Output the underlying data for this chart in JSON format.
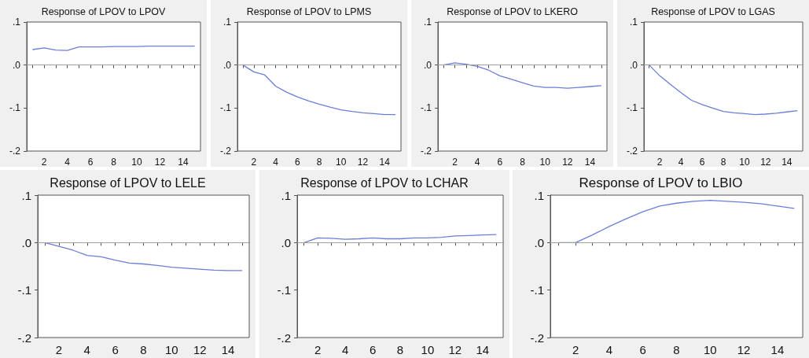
{
  "chart_data": [
    {
      "type": "line",
      "title": "Response of LPOV to LPOV",
      "x": [
        1,
        2,
        3,
        4,
        5,
        6,
        7,
        8,
        9,
        10,
        11,
        12,
        13,
        14,
        15
      ],
      "color": "#6a7fd6",
      "values": [
        0.036,
        0.04,
        0.035,
        0.034,
        0.042,
        0.042,
        0.042,
        0.043,
        0.043,
        0.043,
        0.044,
        0.044,
        0.044,
        0.044,
        0.044
      ],
      "xlim": [
        0.5,
        15.5
      ],
      "xticks": [
        {
          "value": 1,
          "label": null
        },
        2,
        {
          "value": 3,
          "label": null
        },
        4,
        {
          "value": 5,
          "label": null
        },
        6,
        {
          "value": 7,
          "label": null
        },
        8,
        {
          "value": 9,
          "label": null
        },
        10,
        {
          "value": 11,
          "label": null
        },
        12,
        {
          "value": 13,
          "label": null
        },
        14,
        {
          "value": 15,
          "label": null
        }
      ],
      "ylim": [
        -0.2,
        0.1
      ],
      "yticks": [
        {
          "value": -0.2,
          "label": "-.2"
        },
        {
          "value": -0.1,
          "label": "-.1"
        },
        {
          "value": 0,
          "label": ".0"
        },
        {
          "value": 0.1,
          "label": ".1"
        }
      ],
      "ref_lines": [
        {
          "axis": "y",
          "value": 0,
          "color": "#a0a0a0"
        }
      ]
    },
    {
      "type": "line",
      "title": "Response of LPOV to LPMS",
      "x": [
        1,
        2,
        3,
        4,
        5,
        6,
        7,
        8,
        9,
        10,
        11,
        12,
        13,
        14,
        15
      ],
      "color": "#6a7fd6",
      "values": [
        0,
        -0.016,
        -0.023,
        -0.049,
        -0.063,
        -0.074,
        -0.083,
        -0.091,
        -0.098,
        -0.104,
        -0.108,
        -0.111,
        -0.113,
        -0.115,
        -0.115
      ],
      "xlim": [
        0.5,
        15.5
      ],
      "xticks": [
        {
          "value": 1,
          "label": null
        },
        2,
        {
          "value": 3,
          "label": null
        },
        4,
        {
          "value": 5,
          "label": null
        },
        6,
        {
          "value": 7,
          "label": null
        },
        8,
        {
          "value": 9,
          "label": null
        },
        10,
        {
          "value": 11,
          "label": null
        },
        12,
        {
          "value": 13,
          "label": null
        },
        14,
        {
          "value": 15,
          "label": null
        }
      ],
      "ylim": [
        -0.2,
        0.1
      ],
      "yticks": [
        {
          "value": -0.2,
          "label": "-.2"
        },
        {
          "value": -0.1,
          "label": "-.1"
        },
        {
          "value": 0,
          "label": ".0"
        },
        {
          "value": 0.1,
          "label": ".1"
        }
      ],
      "ref_lines": [
        {
          "axis": "y",
          "value": 0,
          "color": "#a0a0a0"
        }
      ]
    },
    {
      "type": "line",
      "title": "Response of LPOV to LKERO",
      "x": [
        1,
        2,
        3,
        4,
        5,
        6,
        7,
        8,
        9,
        10,
        11,
        12,
        13,
        14,
        15
      ],
      "color": "#6a7fd6",
      "values": [
        0,
        0.005,
        0.002,
        -0.003,
        -0.012,
        -0.025,
        -0.033,
        -0.041,
        -0.049,
        -0.052,
        -0.052,
        -0.054,
        -0.052,
        -0.05,
        -0.048
      ],
      "xlim": [
        0.5,
        15.5
      ],
      "xticks": [
        {
          "value": 1,
          "label": null
        },
        2,
        {
          "value": 3,
          "label": null
        },
        4,
        {
          "value": 5,
          "label": null
        },
        6,
        {
          "value": 7,
          "label": null
        },
        8,
        {
          "value": 9,
          "label": null
        },
        10,
        {
          "value": 11,
          "label": null
        },
        12,
        {
          "value": 13,
          "label": null
        },
        14,
        {
          "value": 15,
          "label": null
        }
      ],
      "ylim": [
        -0.2,
        0.1
      ],
      "yticks": [
        {
          "value": -0.2,
          "label": "-.2"
        },
        {
          "value": -0.1,
          "label": "-.1"
        },
        {
          "value": 0,
          "label": ".0"
        },
        {
          "value": 0.1,
          "label": ".1"
        }
      ],
      "ref_lines": [
        {
          "axis": "y",
          "value": 0,
          "color": "#a0a0a0"
        }
      ]
    },
    {
      "type": "line",
      "title": "Response of LPOV to LGAS",
      "x": [
        1,
        2,
        3,
        4,
        5,
        6,
        7,
        8,
        9,
        10,
        11,
        12,
        13,
        14,
        15
      ],
      "color": "#6a7fd6",
      "values": [
        0,
        -0.025,
        -0.045,
        -0.064,
        -0.082,
        -0.092,
        -0.1,
        -0.108,
        -0.111,
        -0.113,
        -0.115,
        -0.114,
        -0.112,
        -0.109,
        -0.106
      ],
      "xlim": [
        0.5,
        15.5
      ],
      "xticks": [
        {
          "value": 1,
          "label": null
        },
        2,
        {
          "value": 3,
          "label": null
        },
        4,
        {
          "value": 5,
          "label": null
        },
        6,
        {
          "value": 7,
          "label": null
        },
        8,
        {
          "value": 9,
          "label": null
        },
        10,
        {
          "value": 11,
          "label": null
        },
        12,
        {
          "value": 13,
          "label": null
        },
        14,
        {
          "value": 15,
          "label": null
        }
      ],
      "ylim": [
        -0.2,
        0.1
      ],
      "yticks": [
        {
          "value": -0.2,
          "label": "-.2"
        },
        {
          "value": -0.1,
          "label": "-.1"
        },
        {
          "value": 0,
          "label": ".0"
        },
        {
          "value": 0.1,
          "label": ".1"
        }
      ],
      "ref_lines": [
        {
          "axis": "y",
          "value": 0,
          "color": "#a0a0a0"
        }
      ]
    },
    {
      "type": "line",
      "title": "Response of LPOV to LELE",
      "x": [
        1,
        2,
        3,
        4,
        5,
        6,
        7,
        8,
        9,
        10,
        11,
        12,
        13,
        14,
        15
      ],
      "color": "#6a7fd6",
      "values": [
        0,
        -0.008,
        -0.016,
        -0.027,
        -0.03,
        -0.037,
        -0.043,
        -0.045,
        -0.048,
        -0.052,
        -0.054,
        -0.056,
        -0.058,
        -0.059,
        -0.059
      ],
      "xlim": [
        0.5,
        15.5
      ],
      "xticks": [
        {
          "value": 1,
          "label": null
        },
        2,
        {
          "value": 3,
          "label": null
        },
        4,
        {
          "value": 5,
          "label": null
        },
        6,
        {
          "value": 7,
          "label": null
        },
        8,
        {
          "value": 9,
          "label": null
        },
        10,
        {
          "value": 11,
          "label": null
        },
        12,
        {
          "value": 13,
          "label": null
        },
        14,
        {
          "value": 15,
          "label": null
        }
      ],
      "ylim": [
        -0.2,
        0.1
      ],
      "yticks": [
        {
          "value": -0.2,
          "label": "-.2"
        },
        {
          "value": -0.1,
          "label": "-.1"
        },
        {
          "value": 0,
          "label": ".0"
        },
        {
          "value": 0.1,
          "label": ".1"
        }
      ],
      "ref_lines": [
        {
          "axis": "y",
          "value": 0,
          "color": "#a0a0a0"
        }
      ]
    },
    {
      "type": "line",
      "title": "Response of LPOV to LCHAR",
      "x": [
        1,
        2,
        3,
        4,
        5,
        6,
        7,
        8,
        9,
        10,
        11,
        12,
        13,
        14,
        15
      ],
      "color": "#6a7fd6",
      "values": [
        0,
        0.01,
        0.009,
        0.007,
        0.008,
        0.01,
        0.008,
        0.008,
        0.01,
        0.01,
        0.011,
        0.014,
        0.015,
        0.016,
        0.017
      ],
      "xlim": [
        0.5,
        15.5
      ],
      "xticks": [
        {
          "value": 1,
          "label": null
        },
        2,
        {
          "value": 3,
          "label": null
        },
        4,
        {
          "value": 5,
          "label": null
        },
        6,
        {
          "value": 7,
          "label": null
        },
        8,
        {
          "value": 9,
          "label": null
        },
        10,
        {
          "value": 11,
          "label": null
        },
        12,
        {
          "value": 13,
          "label": null
        },
        14,
        {
          "value": 15,
          "label": null
        }
      ],
      "ylim": [
        -0.2,
        0.1
      ],
      "yticks": [
        {
          "value": -0.2,
          "label": "-.2"
        },
        {
          "value": -0.1,
          "label": "-.1"
        },
        {
          "value": 0,
          "label": ".0"
        },
        {
          "value": 0.1,
          "label": ".1"
        }
      ],
      "ref_lines": [
        {
          "axis": "y",
          "value": 0,
          "color": "#a0a0a0"
        }
      ]
    },
    {
      "type": "line",
      "title": "Response of LPOV to LBIO",
      "x": [
        1,
        2,
        3,
        4,
        5,
        6,
        7,
        8,
        9,
        10,
        11,
        12,
        13,
        14,
        15
      ],
      "color": "#6a7fd6",
      "values": [
        0,
        0,
        0.016,
        0.034,
        0.05,
        0.065,
        0.077,
        0.083,
        0.087,
        0.089,
        0.087,
        0.085,
        0.082,
        0.077,
        0.072
      ],
      "xlim": [
        0.5,
        15.5
      ],
      "xticks": [
        {
          "value": 1,
          "label": null
        },
        2,
        {
          "value": 3,
          "label": null
        },
        4,
        {
          "value": 5,
          "label": null
        },
        6,
        {
          "value": 7,
          "label": null
        },
        8,
        {
          "value": 9,
          "label": null
        },
        10,
        {
          "value": 11,
          "label": null
        },
        12,
        {
          "value": 13,
          "label": null
        },
        14,
        {
          "value": 15,
          "label": null
        }
      ],
      "ylim": [
        -0.2,
        0.1
      ],
      "yticks": [
        {
          "value": -0.2,
          "label": "-.2"
        },
        {
          "value": -0.1,
          "label": "-.1"
        },
        {
          "value": 0,
          "label": ".0"
        },
        {
          "value": 0.1,
          "label": ".1"
        }
      ],
      "ref_lines": [
        {
          "axis": "y",
          "value": 0,
          "color": "#a0a0a0"
        }
      ]
    }
  ]
}
